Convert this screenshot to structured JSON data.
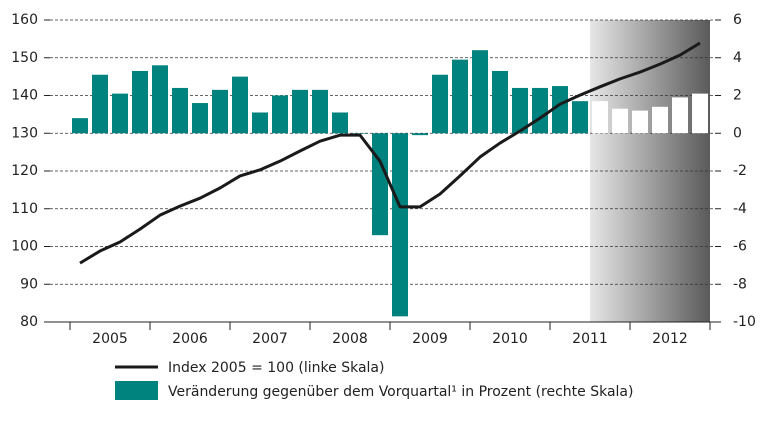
{
  "chart_data": {
    "type": "bar+line",
    "year_labels": [
      "2005",
      "2006",
      "2007",
      "2008",
      "2009",
      "2010",
      "2011",
      "2012"
    ],
    "categories": [
      null,
      null,
      null,
      null,
      null,
      null,
      null,
      null,
      null,
      null,
      null,
      null,
      null,
      null,
      null,
      null,
      null,
      null,
      null,
      null,
      null,
      null,
      null,
      null,
      null,
      null,
      null,
      null,
      null,
      null,
      null,
      null
    ],
    "series": [
      {
        "name": "Index 2005 = 100 (linke Skala)",
        "type": "line",
        "axis": "y",
        "color": "#1a1a1a",
        "values": [
          95.6,
          98.8,
          101.2,
          104.6,
          108.3,
          110.7,
          112.8,
          115.5,
          118.7,
          120.3,
          122.6,
          125.3,
          127.9,
          129.5,
          129.5,
          122.6,
          110.5,
          110.5,
          113.9,
          118.7,
          123.7,
          127.4,
          130.6,
          134.0,
          137.7,
          140.1,
          142.3,
          144.4,
          146.2,
          148.3,
          150.7,
          153.9
        ]
      },
      {
        "name": "Veränderung gegenüber dem Vorquartal¹ in Prozent (rechte Skala)",
        "type": "bar",
        "axis": "y2",
        "color": "#00827f",
        "colors": [
          "#00827f",
          "#00827f",
          "#00827f",
          "#00827f",
          "#00827f",
          "#00827f",
          "#00827f",
          "#00827f",
          "#00827f",
          "#00827f",
          "#00827f",
          "#00827f",
          "#00827f",
          "#00827f",
          "#00827f",
          "#00827f",
          "#00827f",
          "#00827f",
          "#00827f",
          "#00827f",
          "#00827f",
          "#00827f",
          "#00827f",
          "#00827f",
          "#00827f",
          "#00827f",
          "#ffffff",
          "#ffffff",
          "#ffffff",
          "#ffffff",
          "#ffffff",
          "#ffffff"
        ],
        "values": [
          0.8,
          3.1,
          2.1,
          3.3,
          3.6,
          2.4,
          1.6,
          2.3,
          3.0,
          1.1,
          2.0,
          2.3,
          2.3,
          1.1,
          0,
          -5.4,
          -9.7,
          -0.1,
          3.1,
          3.9,
          4.4,
          3.3,
          2.4,
          2.4,
          2.5,
          1.7,
          1.7,
          1.3,
          1.2,
          1.4,
          1.9,
          2.1
        ]
      }
    ],
    "ylim": [
      80,
      160
    ],
    "yticks": [
      80,
      90,
      100,
      110,
      120,
      130,
      140,
      150,
      160
    ],
    "y2lim": [
      -10,
      6
    ],
    "y2ticks": [
      -10,
      -8,
      -6,
      -4,
      -2,
      0,
      2,
      4,
      6
    ],
    "grid": true
  }
}
